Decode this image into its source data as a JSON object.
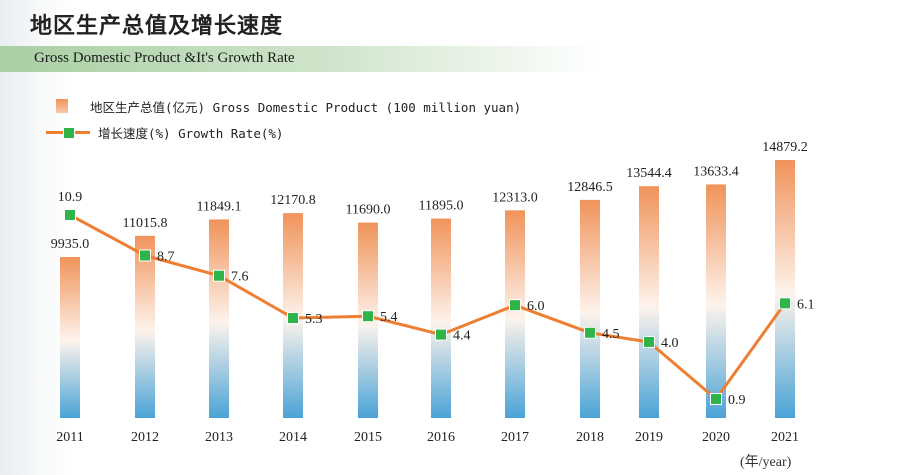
{
  "title": "地区生产总值及增长速度",
  "subtitle": "Gross Domestic Product &It's Growth Rate",
  "legend": {
    "gdp": "地区生产总值(亿元) Gross Domestic Product (100 million yuan)",
    "rate": "增长速度(%) Growth Rate(%)"
  },
  "unit_label": "(年/year)",
  "colors": {
    "bar_top": "#f0935a",
    "bar_mid": "#fdf3ec",
    "bar_bottom": "#4aa3d6",
    "line": "#ee7e32",
    "marker": "#2fb44a"
  },
  "chart_data": {
    "type": "bar",
    "categories": [
      "2011",
      "2012",
      "2013",
      "2014",
      "2015",
      "2016",
      "2017",
      "2018",
      "2019",
      "2020",
      "2021"
    ],
    "series": [
      {
        "name": "地区生产总值(亿元) Gross Domestic Product (100 million yuan)",
        "type": "bar",
        "values": [
          9935.0,
          11015.8,
          11849.1,
          12170.8,
          11690.0,
          11895.0,
          12313.0,
          12846.5,
          13544.4,
          13633.4,
          14879.2
        ],
        "labels": [
          "9935.0",
          "11015.8",
          "11849.1",
          "12170.8",
          "11690.0",
          "11895.0",
          "12313.0",
          "12846.5",
          "13544.4",
          "13633.4",
          "14879.2"
        ]
      },
      {
        "name": "增长速度(%) Growth Rate(%)",
        "type": "line",
        "values": [
          10.9,
          8.7,
          7.6,
          5.3,
          5.4,
          4.4,
          6.0,
          4.5,
          4.0,
          0.9,
          6.1
        ],
        "labels": [
          "10.9",
          "8.7",
          "7.6",
          "5.3",
          "5.4",
          "4.4",
          "6.0",
          "4.5",
          "4.0",
          "0.9",
          "6.1"
        ]
      }
    ],
    "grid": false,
    "legend_position": "top-left"
  }
}
